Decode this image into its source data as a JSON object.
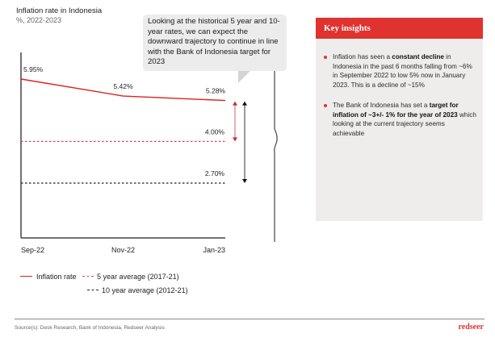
{
  "chart_data": {
    "type": "line",
    "title": "Inflation rate in Indonesia",
    "subtitle": "%, 2022-2023",
    "categories": [
      "Sep-22",
      "Nov-22",
      "Jan-23"
    ],
    "series": [
      {
        "name": "Inflation rate",
        "values": [
          5.95,
          5.42,
          5.28
        ],
        "labels": [
          "5.95%",
          "5.42%",
          "5.28%"
        ],
        "color": "#e02020",
        "style": "solid"
      },
      {
        "name": "5 year average  (2017-21)",
        "values": [
          4.0,
          4.0,
          4.0
        ],
        "labels": [
          "4.00%"
        ],
        "color": "#d0494f",
        "style": "dashed"
      },
      {
        "name": "10 year average (2012-21)",
        "values": [
          2.7,
          2.7,
          2.7
        ],
        "labels": [
          "2.70%"
        ],
        "color": "#222222",
        "style": "dashed"
      }
    ],
    "xlabel": "",
    "ylabel": "",
    "ylim": [
      0,
      6.6
    ],
    "grid": false,
    "legend": "bottom-left",
    "annotation": "Looking at the historical 5 year and 10-year rates, we can expect the downward trajectory to continue in line with the Bank of Indonesia target for 2023"
  },
  "insights": {
    "header": "Key insights",
    "items": [
      {
        "pre": "Inflation has seen a ",
        "bold": "constant decline",
        "post": " in Indonesia in the past 6 months falling from ~6% in September 2022 to low 5% now in January 2023. This is a decline of ~15%"
      },
      {
        "pre": "The Bank of Indonesia has set a ",
        "bold": "target for inflation of ~3+/- 1% for the year of 2023",
        "post": " which looking at the current trajectory seems achievable"
      }
    ]
  },
  "footer": {
    "source": "Source(s): Desk Research, Bank of Indonesia, Redseer Analysis",
    "brand": "redseer"
  },
  "colors": {
    "accent": "#e0322f",
    "panel": "#efedeb",
    "callout": "#ececec"
  }
}
